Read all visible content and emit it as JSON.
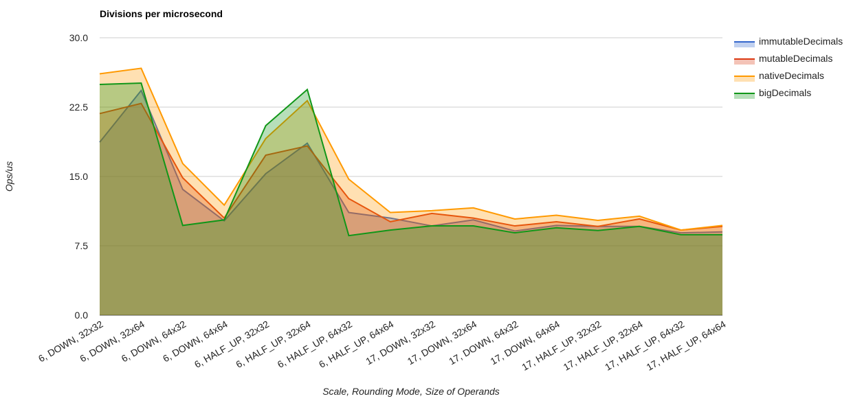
{
  "chart_data": {
    "type": "area",
    "title": "Divisions per microsecond",
    "xlabel": "Scale, Rounding Mode, Size of Operands",
    "ylabel": "Ops/us",
    "ylim": [
      0,
      30
    ],
    "yticks": [
      "0.0",
      "7.5",
      "15.0",
      "22.5",
      "30.0"
    ],
    "ytick_values": [
      0,
      7.5,
      15,
      22.5,
      30
    ],
    "grid": true,
    "legend_position": "right",
    "categories": [
      "6, DOWN, 32x32",
      "6, DOWN, 32x64",
      "6, DOWN, 64x32",
      "6, DOWN, 64x64",
      "6, HALF_UP, 32x32",
      "6, HALF_UP, 32x64",
      "6, HALF_UP, 64x32",
      "6, HALF_UP, 64x64",
      "17, DOWN, 32x32",
      "17, DOWN, 32x64",
      "17, DOWN, 64x32",
      "17, DOWN, 64x64",
      "17, HALF_UP, 32x32",
      "17, HALF_UP, 32x64",
      "17, HALF_UP, 64x32",
      "17, HALF_UP, 64x64"
    ],
    "series": [
      {
        "name": "immutableDecimals",
        "color": "#3366cc",
        "values": [
          18.7,
          24.3,
          13.6,
          10.2,
          15.3,
          18.6,
          11.1,
          10.5,
          9.65,
          10.3,
          9.1,
          9.7,
          9.6,
          9.6,
          8.9,
          9.0
        ]
      },
      {
        "name": "mutableDecimals",
        "color": "#dc3912",
        "values": [
          21.8,
          22.9,
          14.85,
          10.5,
          17.3,
          18.3,
          12.6,
          10.1,
          11.0,
          10.5,
          9.65,
          10.1,
          9.6,
          10.4,
          9.2,
          9.6
        ]
      },
      {
        "name": "nativeDecimals",
        "color": "#ff9900",
        "values": [
          26.1,
          26.7,
          16.4,
          11.9,
          19.1,
          23.2,
          14.7,
          11.1,
          11.3,
          11.6,
          10.4,
          10.8,
          10.25,
          10.7,
          9.2,
          9.7
        ]
      },
      {
        "name": "bigDecimals",
        "color": "#109618",
        "values": [
          24.95,
          25.1,
          9.7,
          10.3,
          20.5,
          24.4,
          8.6,
          9.2,
          9.65,
          9.65,
          8.9,
          9.45,
          9.15,
          9.6,
          8.7,
          8.7
        ]
      }
    ]
  }
}
